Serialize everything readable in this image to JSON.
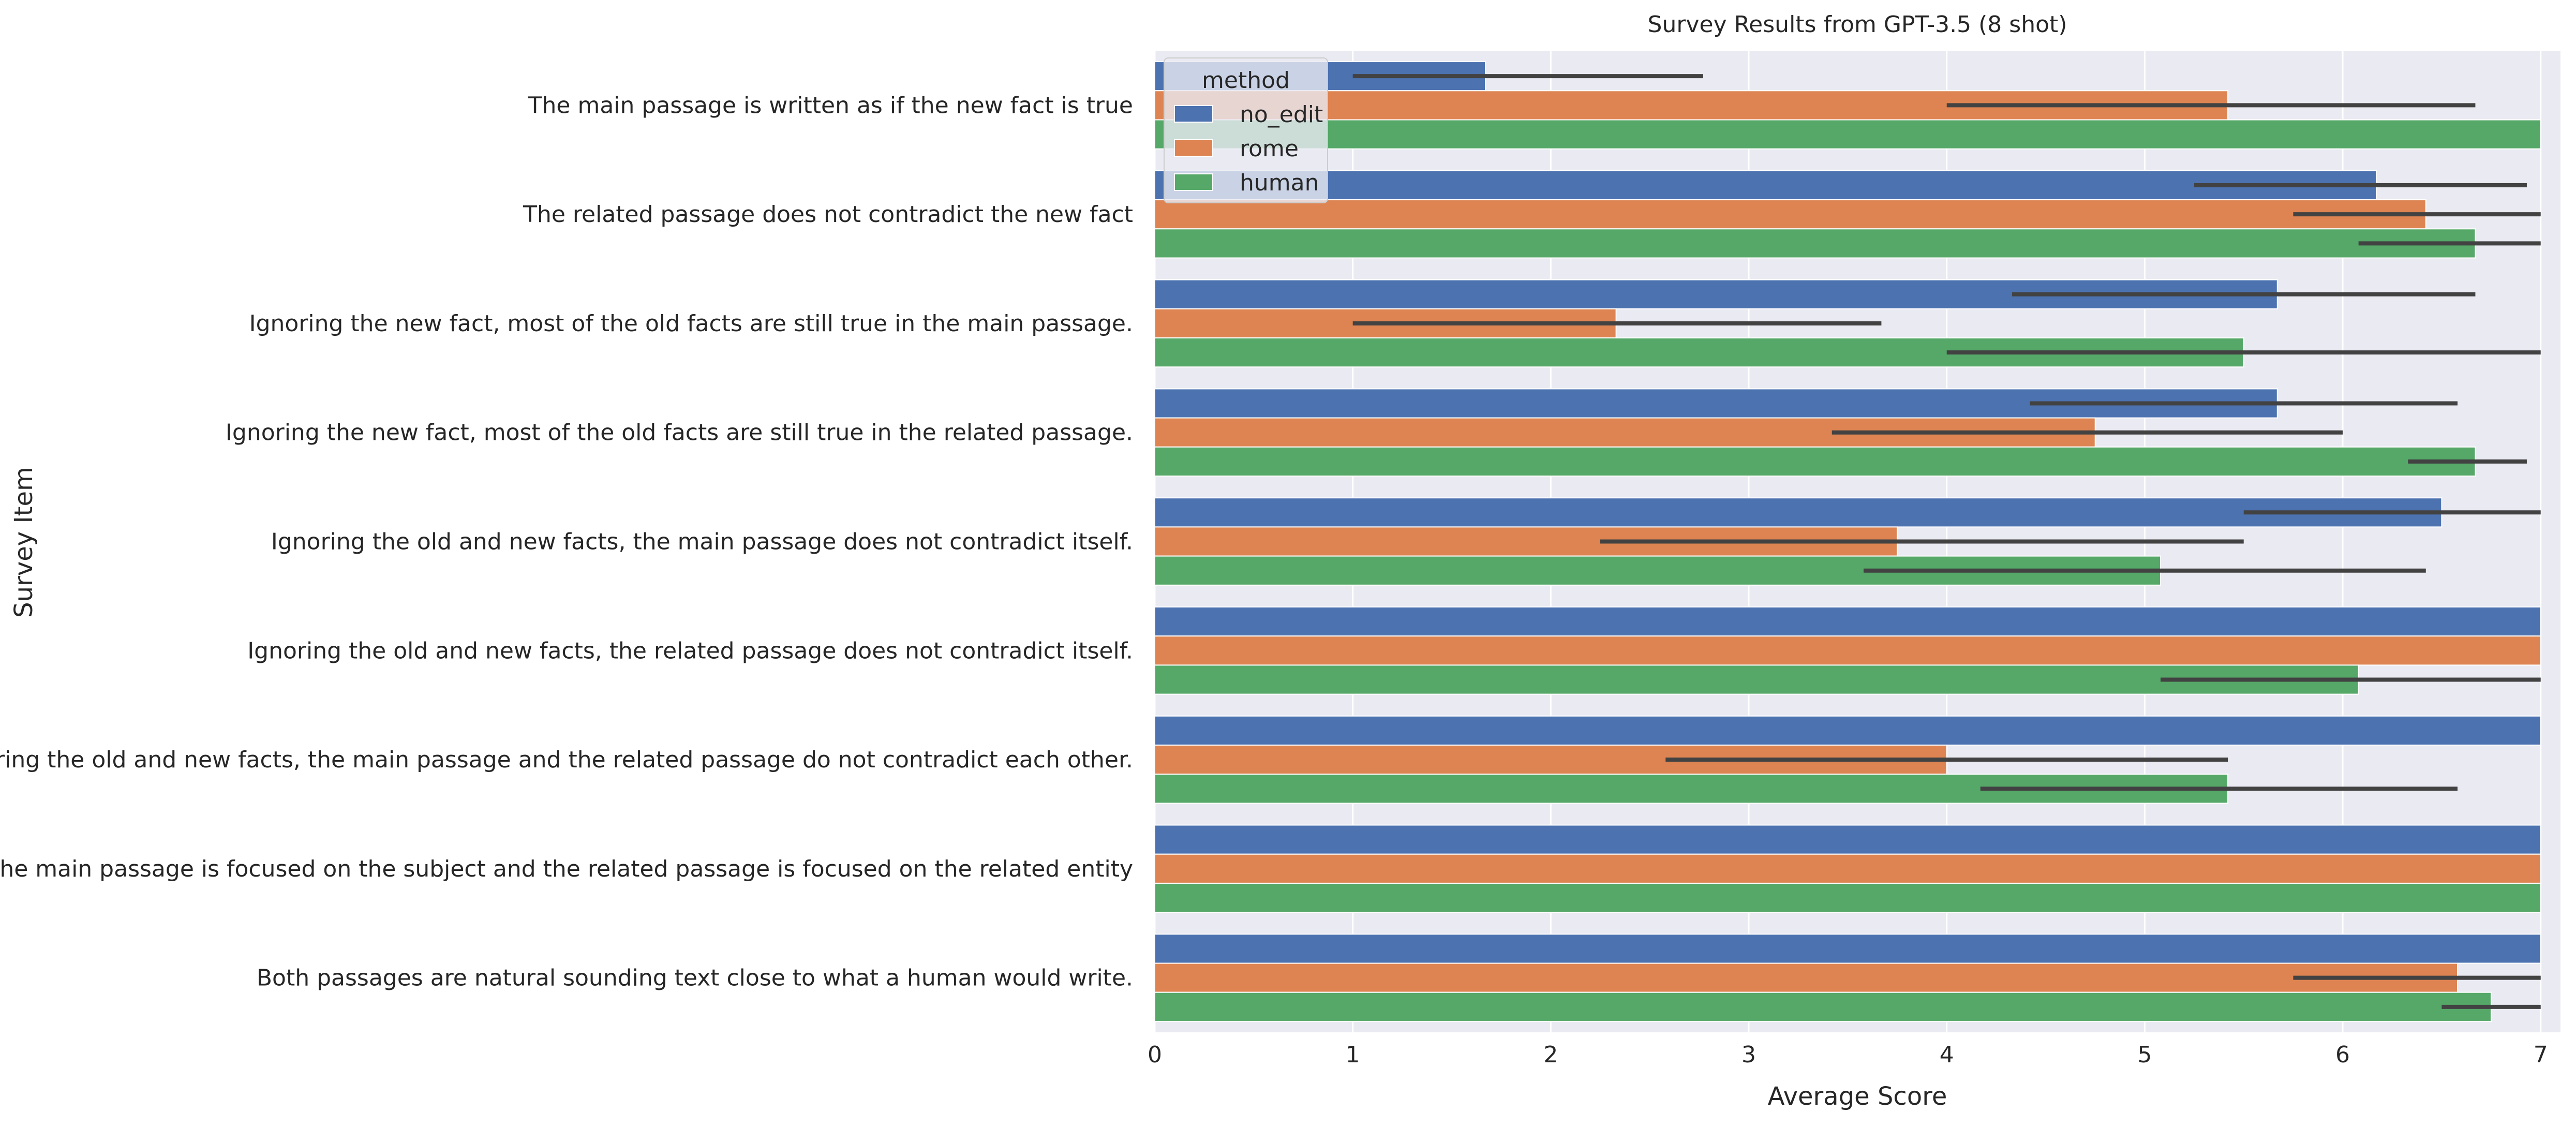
{
  "chart_data": {
    "type": "bar",
    "orientation": "horizontal",
    "title": "Survey Results from GPT-3.5 (8 shot)",
    "xlabel": "Average Score",
    "ylabel": "Survey Item",
    "xlim": [
      0,
      7.1
    ],
    "xticks": [
      "0",
      "1",
      "2",
      "3",
      "4",
      "5",
      "6",
      "7"
    ],
    "grid": true,
    "legend": {
      "title": "method",
      "placement": "top-left"
    },
    "categories": [
      "The main passage is written as if the new fact is true",
      "The related passage does not contradict the new fact",
      "Ignoring the new fact, most of the old facts are still true in the main passage.",
      "Ignoring the new fact, most of the old facts are still true in the related passage.",
      "Ignoring the old and new facts, the main passage does not contradict itself.",
      "Ignoring the old and new facts, the related passage does not contradict itself.",
      "Ignoring the old and new facts, the main passage and the related passage do not contradict each other.",
      "The main passage is focused on the subject and the related passage is focused on the related entity",
      "Both passages are natural sounding text close to what a human would write."
    ],
    "series": [
      {
        "name": "no_edit",
        "color": "#4c72b0",
        "values": [
          1.67,
          6.17,
          5.67,
          5.67,
          6.5,
          7.0,
          7.0,
          7.0,
          7.0
        ],
        "ci": [
          [
            1.0,
            2.77
          ],
          [
            5.25,
            6.93
          ],
          [
            4.33,
            6.67
          ],
          [
            4.42,
            6.58
          ],
          [
            5.5,
            7.0
          ],
          null,
          null,
          null,
          null
        ]
      },
      {
        "name": "rome",
        "color": "#dd8452",
        "values": [
          5.42,
          6.42,
          2.33,
          4.75,
          3.75,
          7.0,
          4.0,
          7.0,
          6.58
        ],
        "ci": [
          [
            4.0,
            6.67
          ],
          [
            5.75,
            7.0
          ],
          [
            1.0,
            3.67
          ],
          [
            3.42,
            6.0
          ],
          [
            2.25,
            5.5
          ],
          null,
          [
            2.58,
            5.42
          ],
          null,
          [
            5.75,
            7.0
          ]
        ]
      },
      {
        "name": "human",
        "color": "#55a868",
        "values": [
          7.0,
          6.67,
          5.5,
          6.67,
          5.08,
          6.08,
          5.42,
          7.0,
          6.75
        ],
        "ci": [
          null,
          [
            6.08,
            7.0
          ],
          [
            4.0,
            7.0
          ],
          [
            6.33,
            6.93
          ],
          [
            3.58,
            6.42
          ],
          [
            5.08,
            7.0
          ],
          [
            4.17,
            6.58
          ],
          null,
          [
            6.5,
            7.0
          ]
        ]
      }
    ]
  }
}
